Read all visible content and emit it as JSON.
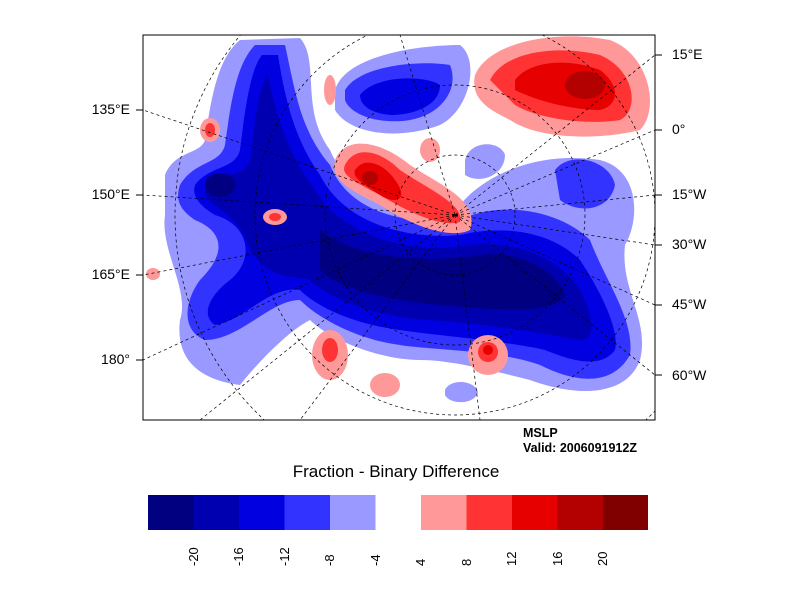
{
  "left_labels": [
    "135°E",
    "150°E",
    "165°E",
    "180°"
  ],
  "right_labels": [
    "15°E",
    "0°",
    "15°W",
    "30°W",
    "45°W",
    "60°W"
  ],
  "info": {
    "variable": "MSLP",
    "valid": "Valid: 2006091912Z"
  },
  "colorbar": {
    "title": "Fraction - Binary Difference",
    "tick_labels": [
      "-20",
      "-16",
      "-12",
      "-8",
      "-4",
      "4",
      "8",
      "12",
      "16",
      "20"
    ],
    "colors": [
      "#000080",
      "#0000b0",
      "#0000e0",
      "#3333ff",
      "#9999ff",
      "#ffffff",
      "#ff9999",
      "#ff3333",
      "#e60000",
      "#b30000",
      "#800000"
    ]
  }
}
